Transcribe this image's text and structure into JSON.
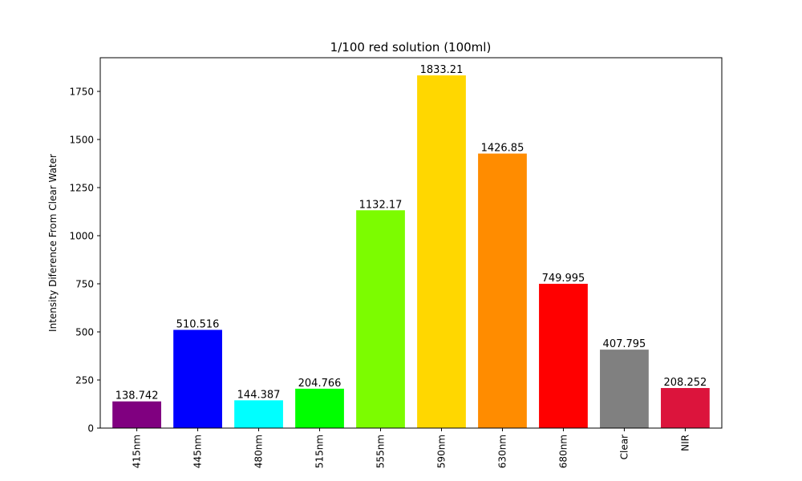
{
  "chart_data": {
    "type": "bar",
    "title": "1/100 red solution (100ml)",
    "xlabel": "",
    "ylabel": "Intensity Diference From Clear Water",
    "ylim": [
      0,
      1925
    ],
    "yticks": [
      0,
      250,
      500,
      750,
      1000,
      1250,
      1500,
      1750
    ],
    "categories": [
      "415nm",
      "445nm",
      "480nm",
      "515nm",
      "555nm",
      "590nm",
      "630nm",
      "680nm",
      "Clear",
      "NIR"
    ],
    "values": [
      138.742,
      510.516,
      144.387,
      204.766,
      1132.17,
      1833.21,
      1426.85,
      749.995,
      407.795,
      208.252
    ],
    "value_labels": [
      "138.742",
      "510.516",
      "144.387",
      "204.766",
      "1132.17",
      "1833.21",
      "1426.85",
      "749.995",
      "407.795",
      "208.252"
    ],
    "colors": [
      "#800080",
      "#0000ff",
      "#00ffff",
      "#00ff00",
      "#7cfc00",
      "#ffd700",
      "#ff8c00",
      "#ff0000",
      "#808080",
      "#dc143c"
    ],
    "grid": false,
    "legend": "none"
  }
}
